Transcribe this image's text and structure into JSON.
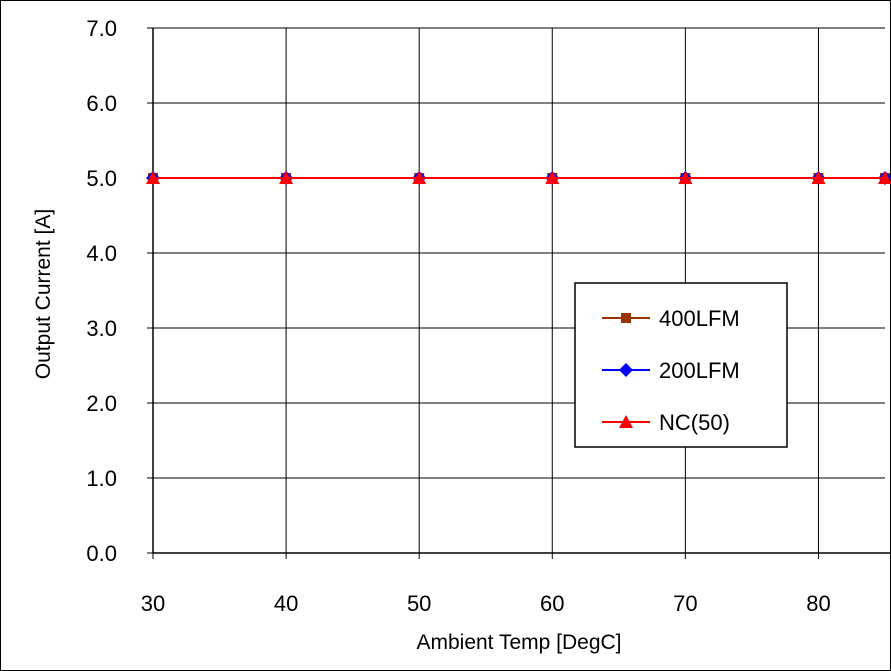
{
  "chart_data": {
    "type": "line",
    "title": "",
    "xlabel": "Ambient Temp [DegC]",
    "ylabel": "Output Current [A]",
    "xlim": [
      30,
      85
    ],
    "ylim": [
      0,
      7
    ],
    "x_ticks": [
      "30",
      "40",
      "50",
      "60",
      "70",
      "80"
    ],
    "y_ticks": [
      "0.0",
      "1.0",
      "2.0",
      "3.0",
      "4.0",
      "5.0",
      "6.0",
      "7.0"
    ],
    "grid": true,
    "legend_position": "right-middle",
    "x": [
      30,
      40,
      50,
      60,
      70,
      80,
      85
    ],
    "series": [
      {
        "name": "400LFM",
        "color": "#993300",
        "marker": "square",
        "values": [
          5,
          5,
          5,
          5,
          5,
          5,
          5
        ]
      },
      {
        "name": "200LFM",
        "color": "#0000FF",
        "marker": "diamond",
        "values": [
          5,
          5,
          5,
          5,
          5,
          5,
          5
        ]
      },
      {
        "name": "NC(50)",
        "color": "#FF0000",
        "marker": "triangle",
        "values": [
          5,
          5,
          5,
          5,
          5,
          5,
          5
        ]
      }
    ]
  }
}
